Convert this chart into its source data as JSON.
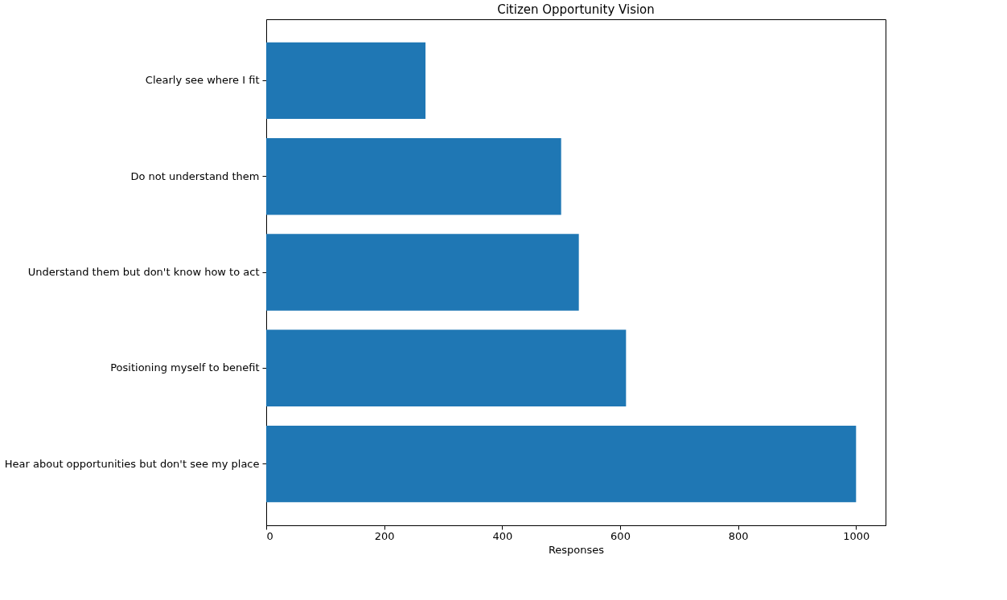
{
  "chart_data": {
    "type": "bar",
    "orientation": "horizontal",
    "title": "Citizen Opportunity Vision",
    "xlabel": "Responses",
    "categories": [
      "Clearly see where I fit",
      "Do not understand them",
      "Understand them but don't know how to act",
      "Positioning myself to benefit",
      "Hear about opportunities but don't see my place"
    ],
    "values": [
      270,
      500,
      530,
      610,
      1000
    ],
    "color": "#1f77b4",
    "xlim": [
      0,
      1050
    ],
    "xticks": [
      0,
      200,
      400,
      600,
      800,
      1000
    ],
    "grid": false
  }
}
